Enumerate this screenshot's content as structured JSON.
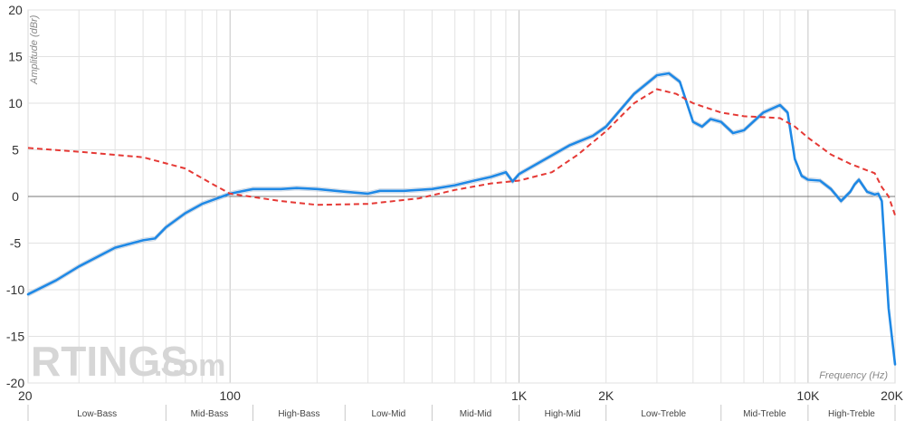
{
  "chart_data": {
    "type": "line",
    "xscale": "log",
    "xlabel": "Frequency (Hz)",
    "ylabel": "Amplitude (dBr)",
    "xlim": [
      20,
      20000
    ],
    "ylim": [
      -20,
      20
    ],
    "xticks": [
      {
        "value": 20,
        "label": "20"
      },
      {
        "value": 100,
        "label": "100"
      },
      {
        "value": 1000,
        "label": "1K"
      },
      {
        "value": 2000,
        "label": "2K"
      },
      {
        "value": 10000,
        "label": "10K"
      },
      {
        "value": 20000,
        "label": "20K"
      }
    ],
    "yticks": [
      20,
      15,
      10,
      5,
      0,
      -5,
      -10,
      -15,
      -20
    ],
    "grid": true,
    "bands": [
      {
        "label": "Low-Bass",
        "from": 20,
        "to": 60
      },
      {
        "label": "Mid-Bass",
        "from": 60,
        "to": 120
      },
      {
        "label": "High-Bass",
        "from": 120,
        "to": 250
      },
      {
        "label": "Low-Mid",
        "from": 250,
        "to": 500
      },
      {
        "label": "Mid-Mid",
        "from": 500,
        "to": 1000
      },
      {
        "label": "High-Mid",
        "from": 1000,
        "to": 2000
      },
      {
        "label": "Low-Treble",
        "from": 2000,
        "to": 5000
      },
      {
        "label": "Mid-Treble",
        "from": 5000,
        "to": 10000
      },
      {
        "label": "High-Treble",
        "from": 10000,
        "to": 20000
      }
    ],
    "series": [
      {
        "color": "#1e88e5",
        "style": "solid",
        "points": [
          [
            20,
            -10.5
          ],
          [
            25,
            -9
          ],
          [
            30,
            -7.5
          ],
          [
            40,
            -5.5
          ],
          [
            50,
            -4.7
          ],
          [
            55,
            -4.5
          ],
          [
            60,
            -3.3
          ],
          [
            70,
            -1.8
          ],
          [
            80,
            -0.8
          ],
          [
            100,
            0.3
          ],
          [
            120,
            0.8
          ],
          [
            150,
            0.8
          ],
          [
            170,
            0.9
          ],
          [
            200,
            0.8
          ],
          [
            250,
            0.5
          ],
          [
            300,
            0.3
          ],
          [
            330,
            0.6
          ],
          [
            400,
            0.6
          ],
          [
            500,
            0.8
          ],
          [
            600,
            1.2
          ],
          [
            700,
            1.7
          ],
          [
            800,
            2.1
          ],
          [
            900,
            2.6
          ],
          [
            950,
            1.6
          ],
          [
            1000,
            2.4
          ],
          [
            1200,
            3.8
          ],
          [
            1500,
            5.5
          ],
          [
            1800,
            6.5
          ],
          [
            2000,
            7.5
          ],
          [
            2500,
            11
          ],
          [
            3000,
            13
          ],
          [
            3300,
            13.2
          ],
          [
            3600,
            12.3
          ],
          [
            4000,
            8
          ],
          [
            4300,
            7.5
          ],
          [
            4600,
            8.3
          ],
          [
            5000,
            8
          ],
          [
            5500,
            6.8
          ],
          [
            6000,
            7.1
          ],
          [
            7000,
            9
          ],
          [
            8000,
            9.8
          ],
          [
            8500,
            9
          ],
          [
            9000,
            4
          ],
          [
            9500,
            2.2
          ],
          [
            10000,
            1.8
          ],
          [
            11000,
            1.7
          ],
          [
            12000,
            0.8
          ],
          [
            13000,
            -0.5
          ],
          [
            14000,
            0.5
          ],
          [
            14500,
            1.3
          ],
          [
            15000,
            1.8
          ],
          [
            16000,
            0.5
          ],
          [
            17000,
            0.2
          ],
          [
            17500,
            0.3
          ],
          [
            18000,
            -0.5
          ],
          [
            19000,
            -12
          ],
          [
            20000,
            -18
          ]
        ]
      },
      {
        "color": "#e53935",
        "style": "dashed",
        "points": [
          [
            20,
            5.2
          ],
          [
            30,
            4.8
          ],
          [
            50,
            4.2
          ],
          [
            70,
            3
          ],
          [
            85,
            1.5
          ],
          [
            100,
            0.3
          ],
          [
            150,
            -0.5
          ],
          [
            200,
            -0.9
          ],
          [
            300,
            -0.8
          ],
          [
            450,
            -0.2
          ],
          [
            600,
            0.7
          ],
          [
            800,
            1.4
          ],
          [
            1000,
            1.7
          ],
          [
            1300,
            2.6
          ],
          [
            1600,
            4.5
          ],
          [
            2000,
            7
          ],
          [
            2500,
            10
          ],
          [
            3000,
            11.5
          ],
          [
            3500,
            11
          ],
          [
            4000,
            10
          ],
          [
            5000,
            9
          ],
          [
            6000,
            8.6
          ],
          [
            7000,
            8.5
          ],
          [
            8000,
            8.4
          ],
          [
            9000,
            7.5
          ],
          [
            10000,
            6.3
          ],
          [
            12000,
            4.5
          ],
          [
            14000,
            3.5
          ],
          [
            16000,
            2.8
          ],
          [
            17000,
            2.5
          ],
          [
            18000,
            1
          ],
          [
            19000,
            0
          ],
          [
            20000,
            -2
          ]
        ]
      }
    ]
  },
  "watermark": {
    "brand": "RTINGS",
    "suffix": ".com"
  }
}
